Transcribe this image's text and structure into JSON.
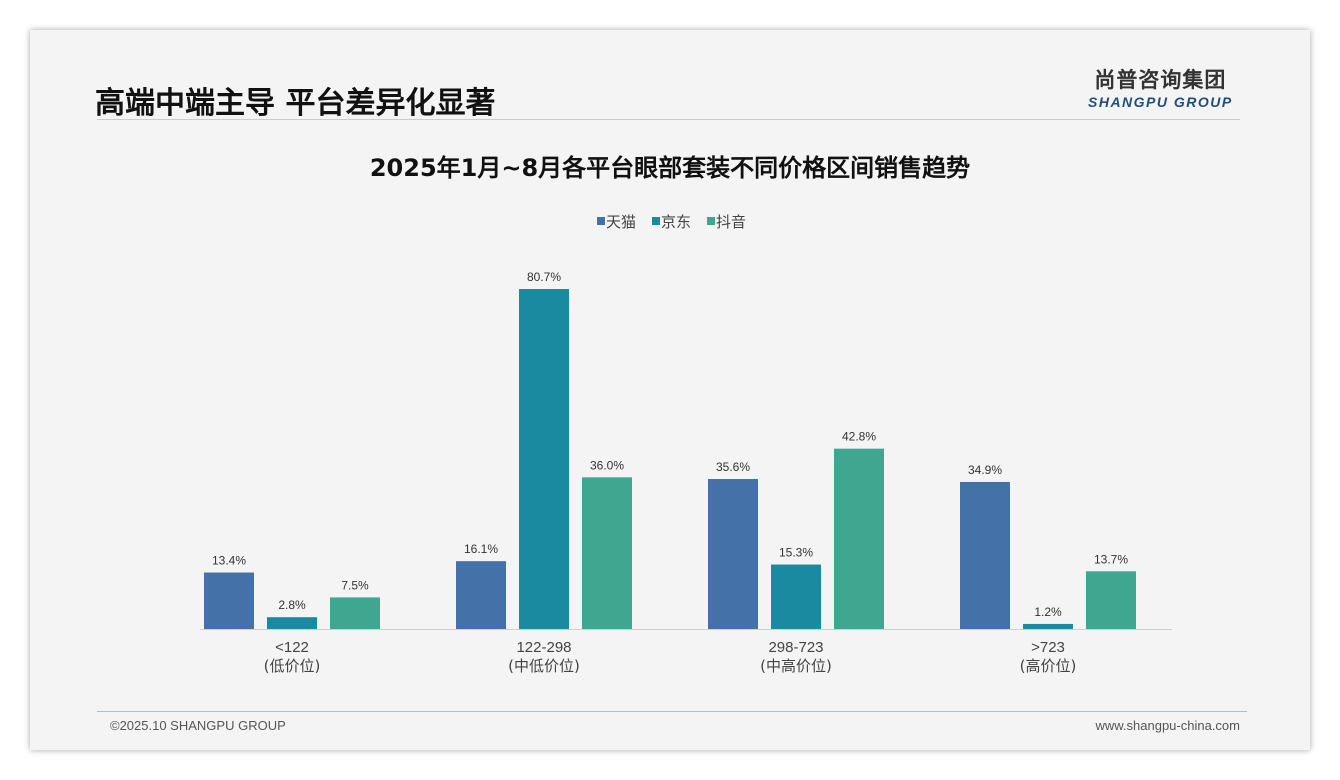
{
  "header": {
    "title": "高端中端主导 平台差异化显著",
    "logo_cn": "尚普咨询集团",
    "logo_en": "SHANGPU GROUP"
  },
  "footer": {
    "copyright": "©2025.10 SHANGPU GROUP",
    "website": "www.shangpu-china.com"
  },
  "chart_data": {
    "type": "bar",
    "title": "2025年1月~8月各平台眼部套装不同价格区间销售趋势",
    "categories": [
      "<122",
      "122-298",
      "298-723",
      ">723"
    ],
    "category_sublabels": [
      "(低价位)",
      "(中低价位)",
      "(中高价位)",
      "(高价位)"
    ],
    "series": [
      {
        "name": "天猫",
        "color": "#4472a8",
        "values": [
          13.4,
          16.1,
          35.6,
          34.9
        ]
      },
      {
        "name": "京东",
        "color": "#1a8aa0",
        "values": [
          2.8,
          80.7,
          15.3,
          1.2
        ]
      },
      {
        "name": "抖音",
        "color": "#3fa68f",
        "values": [
          7.5,
          36.0,
          42.8,
          13.7
        ]
      }
    ],
    "unit": "%",
    "legend": "top-center",
    "ylim": [
      0,
      85
    ]
  }
}
